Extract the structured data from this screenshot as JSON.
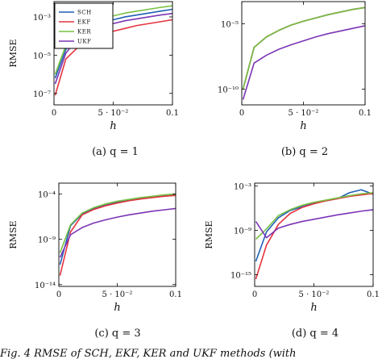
{
  "colors": {
    "SCH": "#1f5fb4",
    "EKF": "#e4343e",
    "KER": "#77c043",
    "UKF": "#7b35b6"
  },
  "legend": [
    {
      "key": "SCH",
      "label": "SCH"
    },
    {
      "key": "EKF",
      "label": "EKF"
    },
    {
      "key": "KER",
      "label": "KER"
    },
    {
      "key": "UKF",
      "label": "UKF"
    }
  ],
  "footer_text": "Fig. 4 RMSE of SCH, EKF, KER and UKF methods (with",
  "chart_data": [
    {
      "type": "line",
      "caption": "(a) q = 1",
      "xlabel": "h",
      "ylabel": "RMSE",
      "xlim": [
        0,
        0.1
      ],
      "ylim_log10": [
        -7.6,
        -2.2
      ],
      "y_scale": "log",
      "xticks": [
        {
          "value": 0,
          "label": "0"
        },
        {
          "value": 0.05,
          "label": "5 · 10⁻²"
        },
        {
          "value": 0.1,
          "label": "0.1"
        }
      ],
      "yticks": [
        {
          "exp": -3,
          "label": "10⁻³"
        },
        {
          "exp": -5,
          "label": "10⁻⁵"
        },
        {
          "exp": -7,
          "label": "10⁻⁷"
        }
      ],
      "x": [
        0.001,
        0.01,
        0.02,
        0.03,
        0.04,
        0.05,
        0.06,
        0.07,
        0.08,
        0.09,
        0.1
      ],
      "series": [
        {
          "key": "SCH",
          "log10_values": [
            -6.2,
            -4.7,
            -3.9,
            -3.55,
            -3.35,
            -3.15,
            -3.0,
            -2.9,
            -2.8,
            -2.7,
            -2.6
          ]
        },
        {
          "key": "EKF",
          "log10_values": [
            -7.1,
            -5.2,
            -4.6,
            -4.2,
            -3.95,
            -3.75,
            -3.6,
            -3.45,
            -3.35,
            -3.25,
            -3.15
          ]
        },
        {
          "key": "KER",
          "log10_values": [
            -6.0,
            -4.5,
            -3.7,
            -3.35,
            -3.1,
            -2.95,
            -2.8,
            -2.7,
            -2.6,
            -2.5,
            -2.42
          ]
        },
        {
          "key": "UKF",
          "log10_values": [
            -6.5,
            -4.9,
            -4.1,
            -3.75,
            -3.55,
            -3.35,
            -3.2,
            -3.1,
            -3.0,
            -2.9,
            -2.82
          ]
        }
      ]
    },
    {
      "type": "line",
      "caption": "(b) q = 2",
      "xlabel": "h",
      "ylabel": "",
      "xlim": [
        0,
        0.1
      ],
      "ylim_log10": [
        -11.2,
        -3.3
      ],
      "y_scale": "log",
      "xticks": [
        {
          "value": 0,
          "label": "0"
        },
        {
          "value": 0.05,
          "label": "5 · 10⁻²"
        },
        {
          "value": 0.1,
          "label": "0.1"
        }
      ],
      "yticks": [
        {
          "exp": -5,
          "label": "10⁻⁵"
        },
        {
          "exp": -10,
          "label": "10⁻¹⁰"
        }
      ],
      "x": [
        0.001,
        0.01,
        0.02,
        0.03,
        0.04,
        0.05,
        0.06,
        0.07,
        0.08,
        0.09,
        0.1
      ],
      "series": [
        {
          "key": "SCH",
          "log10_values": [
            -10.0,
            -6.8,
            -6.0,
            -5.5,
            -5.1,
            -4.8,
            -4.55,
            -4.3,
            -4.1,
            -3.9,
            -3.75
          ]
        },
        {
          "key": "EKF",
          "log10_values": [
            -10.0,
            -6.8,
            -6.0,
            -5.5,
            -5.1,
            -4.8,
            -4.55,
            -4.3,
            -4.1,
            -3.9,
            -3.75
          ]
        },
        {
          "key": "KER",
          "log10_values": [
            -10.0,
            -6.8,
            -6.0,
            -5.5,
            -5.1,
            -4.8,
            -4.55,
            -4.3,
            -4.1,
            -3.9,
            -3.75
          ]
        },
        {
          "key": "UKF",
          "log10_values": [
            -10.8,
            -8.0,
            -7.4,
            -6.95,
            -6.6,
            -6.3,
            -6.0,
            -5.75,
            -5.55,
            -5.35,
            -5.15
          ]
        }
      ]
    },
    {
      "type": "line",
      "caption": "(c) q = 3",
      "xlabel": "h",
      "ylabel": "RMSE",
      "xlim": [
        0,
        0.1
      ],
      "ylim_log10": [
        -14.2,
        -2.8
      ],
      "y_scale": "log",
      "xticks": [
        {
          "value": 0,
          "label": "0"
        },
        {
          "value": 0.05,
          "label": "5 · 10⁻²"
        },
        {
          "value": 0.1,
          "label": "0.1"
        }
      ],
      "yticks": [
        {
          "exp": -4,
          "label": "10⁻⁴"
        },
        {
          "exp": -9,
          "label": "10⁻⁹"
        },
        {
          "exp": -14,
          "label": "10⁻¹⁴"
        }
      ],
      "x": [
        0.001,
        0.01,
        0.02,
        0.03,
        0.04,
        0.05,
        0.06,
        0.07,
        0.08,
        0.09,
        0.1
      ],
      "series": [
        {
          "key": "SCH",
          "log10_values": [
            -11.8,
            -7.5,
            -6.2,
            -5.6,
            -5.2,
            -4.9,
            -4.7,
            -4.5,
            -4.35,
            -4.2,
            -4.1
          ]
        },
        {
          "key": "EKF",
          "log10_values": [
            -13.0,
            -8.2,
            -6.3,
            -5.7,
            -5.3,
            -5.0,
            -4.75,
            -4.55,
            -4.4,
            -4.25,
            -4.15
          ]
        },
        {
          "key": "KER",
          "log10_values": [
            -10.5,
            -7.4,
            -6.1,
            -5.5,
            -5.1,
            -4.8,
            -4.6,
            -4.4,
            -4.25,
            -4.1,
            -4.0
          ]
        },
        {
          "key": "UKF",
          "log10_values": [
            -11.0,
            -8.5,
            -7.7,
            -7.2,
            -6.85,
            -6.55,
            -6.3,
            -6.1,
            -5.9,
            -5.75,
            -5.6
          ]
        }
      ]
    },
    {
      "type": "line",
      "caption": "(d) q = 4",
      "xlabel": "h",
      "ylabel": "RMSE",
      "xlim": [
        0,
        0.1
      ],
      "ylim_log10": [
        -16.6,
        -2.6
      ],
      "y_scale": "log",
      "xticks": [
        {
          "value": 0,
          "label": "0"
        },
        {
          "value": 0.05,
          "label": "5 · 10⁻²"
        },
        {
          "value": 0.1,
          "label": "0.1"
        }
      ],
      "yticks": [
        {
          "exp": -3,
          "label": "10⁻³"
        },
        {
          "exp": -9,
          "label": "10⁻⁹"
        },
        {
          "exp": -15,
          "label": "10⁻¹⁵"
        }
      ],
      "x": [
        0.001,
        0.01,
        0.02,
        0.03,
        0.04,
        0.05,
        0.06,
        0.07,
        0.08,
        0.09,
        0.1
      ],
      "series": [
        {
          "key": "SCH",
          "log10_values": [
            -13.2,
            -9.2,
            -7.3,
            -6.3,
            -5.8,
            -5.3,
            -5.0,
            -4.7,
            -3.9,
            -3.5,
            -4.1
          ]
        },
        {
          "key": "EKF",
          "log10_values": [
            -15.6,
            -11.0,
            -8.2,
            -6.7,
            -5.9,
            -5.4,
            -5.0,
            -4.7,
            -4.4,
            -4.2,
            -4.0
          ]
        },
        {
          "key": "KER",
          "log10_values": [
            -10.2,
            -8.8,
            -7.0,
            -6.2,
            -5.6,
            -5.2,
            -4.9,
            -4.6,
            -4.3,
            -4.05,
            -3.9
          ]
        },
        {
          "key": "UKF",
          "log10_values": [
            -7.8,
            -10.0,
            -8.7,
            -8.2,
            -7.8,
            -7.5,
            -7.2,
            -6.9,
            -6.65,
            -6.4,
            -6.2
          ]
        }
      ]
    }
  ]
}
